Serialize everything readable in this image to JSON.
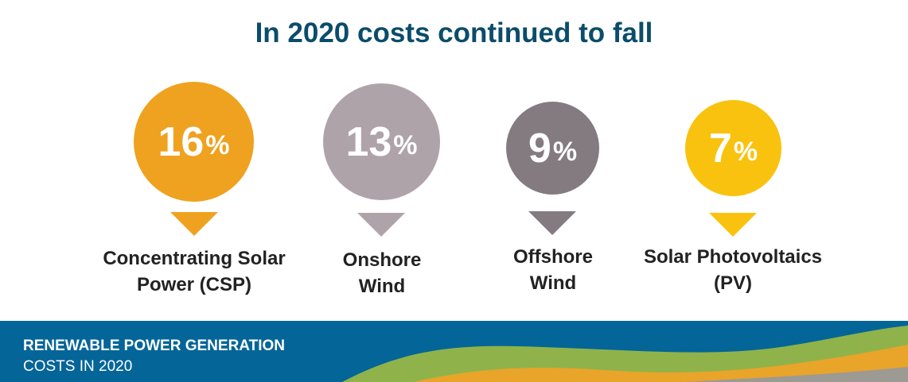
{
  "title": "In 2020 costs continued to fall",
  "items": [
    {
      "value": "16",
      "unit": "%",
      "line1": "Concentrating Solar",
      "line2": "Power (CSP)",
      "color": "#efa21f"
    },
    {
      "value": "13",
      "unit": "%",
      "line1": "Onshore",
      "line2": "Wind",
      "color": "#afa3aa"
    },
    {
      "value": "9",
      "unit": "%",
      "line1": "Offshore",
      "line2": "Wind",
      "color": "#847b80"
    },
    {
      "value": "7",
      "unit": "%",
      "line1": "Solar Photovoltaics",
      "line2": "(PV)",
      "color": "#f9c20e"
    }
  ],
  "banner": {
    "line1": "RENEWABLE POWER GENERATION",
    "line2": "COSTS IN 2020"
  }
}
